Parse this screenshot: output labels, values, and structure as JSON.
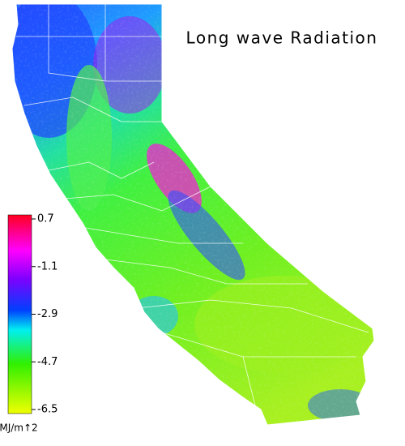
{
  "title": "Long wave Radiation",
  "colorbar": {
    "range": [
      -6.5,
      0.7
    ],
    "ticks": [
      0.7,
      -1.1,
      -2.9,
      -4.7,
      -6.5
    ],
    "label": "MJ/m↑2"
  }
}
